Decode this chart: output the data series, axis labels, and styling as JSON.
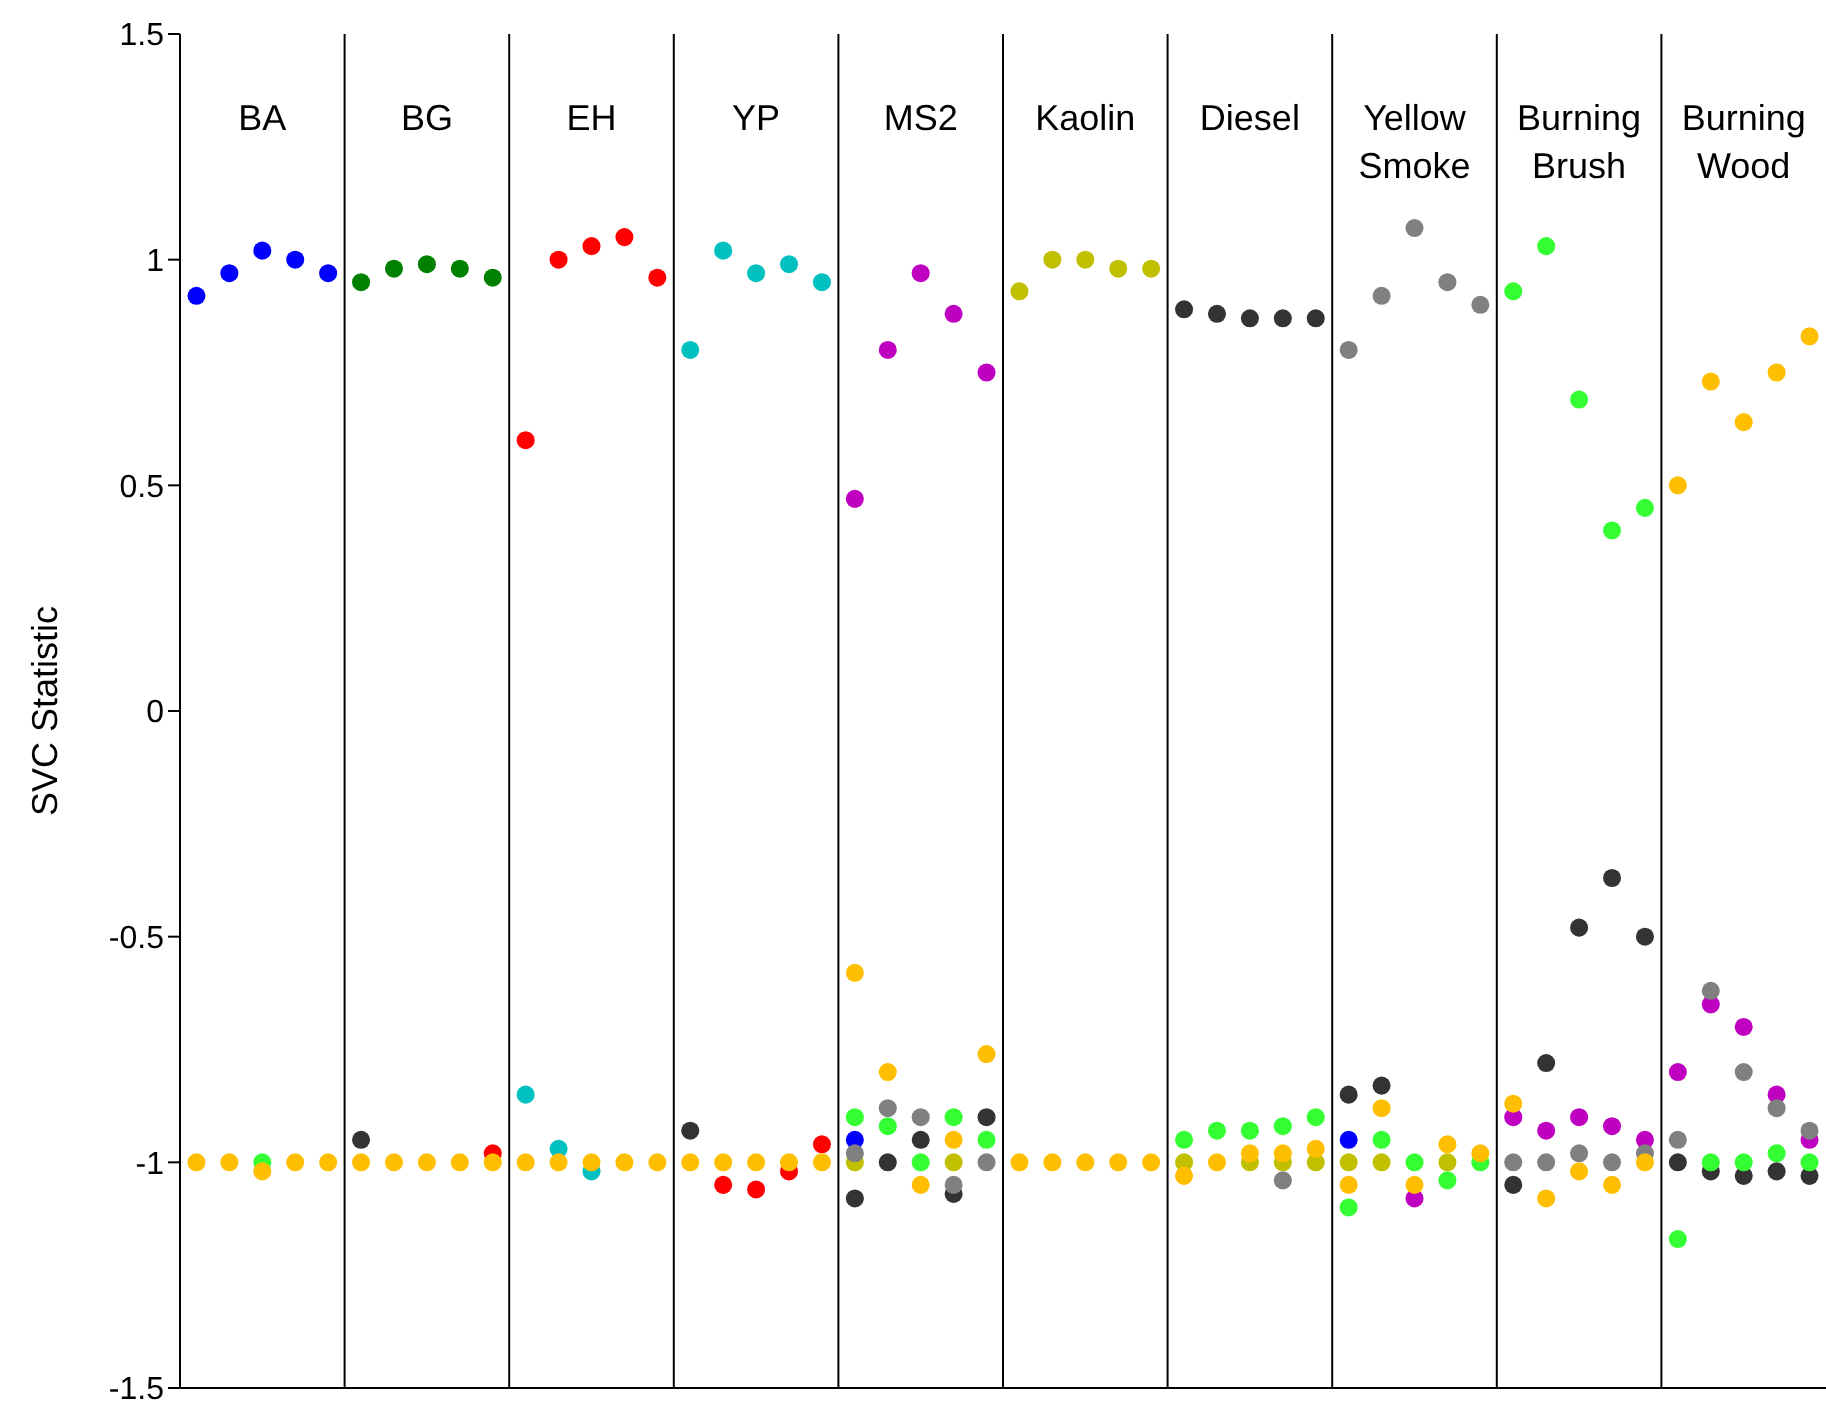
{
  "chart_data": {
    "type": "scatter",
    "ylabel": "SVC Statistic",
    "ylim": [
      -1.5,
      1.5
    ],
    "yticks": [
      -1.5,
      -1,
      -0.5,
      0,
      0.5,
      1,
      1.5
    ],
    "tick_labels": "y",
    "legend": false,
    "marker": "circle",
    "categories": [
      null,
      null,
      null,
      null,
      null,
      null,
      null,
      null,
      null,
      null,
      null,
      null,
      null,
      null,
      null,
      null,
      null,
      null,
      null,
      null,
      null,
      null,
      null,
      null,
      null,
      null,
      null,
      null,
      null,
      null,
      null,
      null,
      null,
      null,
      null,
      null,
      null,
      null,
      null,
      null,
      null,
      null,
      null,
      null,
      null,
      null,
      null,
      null,
      null,
      null
    ],
    "annotations": [
      "BA",
      "BG",
      "EH",
      "YP",
      "MS2",
      "Kaolin",
      "Diesel",
      "Yellow Smoke",
      "Burning Brush",
      "Burning Wood"
    ],
    "series": [
      {
        "color": "#0000ff",
        "values": [
          0.92,
          0.97,
          1.02,
          1.0,
          0.97,
          null,
          null,
          null,
          null,
          null,
          null,
          null,
          null,
          null,
          null,
          null,
          null,
          null,
          null,
          null,
          -0.95,
          null,
          null,
          null,
          null,
          null,
          null,
          null,
          null,
          null,
          null,
          null,
          null,
          null,
          null,
          -0.95,
          null,
          null,
          null,
          null,
          null,
          null,
          null,
          null,
          null,
          null,
          null,
          null,
          null,
          null
        ]
      },
      {
        "color": "#008000",
        "values": [
          null,
          null,
          null,
          null,
          null,
          0.95,
          0.98,
          0.99,
          0.98,
          0.96,
          null,
          null,
          null,
          null,
          null,
          null,
          null,
          null,
          null,
          null,
          null,
          null,
          null,
          null,
          null,
          null,
          null,
          null,
          null,
          null,
          null,
          null,
          null,
          null,
          null,
          null,
          null,
          null,
          null,
          null,
          null,
          null,
          null,
          null,
          null,
          null,
          null,
          null,
          null,
          null
        ]
      },
      {
        "color": "#ff0000",
        "values": [
          null,
          null,
          null,
          null,
          null,
          null,
          null,
          null,
          null,
          -0.98,
          0.6,
          1.0,
          1.03,
          1.05,
          0.96,
          null,
          -1.05,
          -1.06,
          -1.02,
          -0.96,
          null,
          null,
          null,
          null,
          null,
          null,
          null,
          null,
          null,
          null,
          null,
          null,
          null,
          null,
          null,
          null,
          null,
          null,
          null,
          null,
          null,
          null,
          null,
          null,
          null,
          null,
          null,
          null,
          null,
          null
        ]
      },
      {
        "color": "#00c0c0",
        "values": [
          null,
          null,
          null,
          null,
          null,
          null,
          null,
          null,
          null,
          null,
          -0.85,
          -0.97,
          -1.02,
          null,
          null,
          0.8,
          1.02,
          0.97,
          0.99,
          0.95,
          null,
          null,
          null,
          null,
          null,
          null,
          null,
          null,
          null,
          null,
          null,
          null,
          null,
          null,
          null,
          null,
          null,
          null,
          null,
          null,
          null,
          null,
          null,
          null,
          null,
          null,
          null,
          null,
          null,
          null
        ]
      },
      {
        "color": "#c000c0",
        "values": [
          null,
          null,
          null,
          null,
          null,
          null,
          null,
          null,
          null,
          null,
          null,
          null,
          null,
          null,
          null,
          null,
          null,
          null,
          null,
          null,
          0.47,
          0.8,
          0.97,
          0.88,
          0.75,
          null,
          null,
          null,
          null,
          null,
          null,
          null,
          null,
          null,
          null,
          null,
          null,
          -1.08,
          null,
          null,
          -0.9,
          -0.93,
          -0.9,
          -0.92,
          -0.95,
          -0.8,
          -0.65,
          -0.7,
          -0.85,
          -0.95
        ]
      },
      {
        "color": "#c0c000",
        "values": [
          null,
          null,
          null,
          null,
          null,
          null,
          null,
          null,
          null,
          null,
          null,
          null,
          null,
          null,
          null,
          null,
          null,
          null,
          null,
          null,
          -1.0,
          null,
          null,
          -1.0,
          null,
          0.93,
          1.0,
          1.0,
          0.98,
          0.98,
          -1.0,
          null,
          -1.0,
          -1.0,
          -1.0,
          -1.0,
          -1.0,
          null,
          -1.0,
          null,
          null,
          null,
          null,
          null,
          null,
          null,
          null,
          null,
          null,
          null
        ]
      },
      {
        "color": "#333333",
        "values": [
          null,
          null,
          null,
          null,
          null,
          -0.95,
          null,
          null,
          null,
          null,
          null,
          null,
          null,
          null,
          null,
          -0.93,
          null,
          null,
          null,
          null,
          -1.08,
          -1.0,
          -0.95,
          -1.07,
          -0.9,
          null,
          null,
          null,
          null,
          null,
          0.89,
          0.88,
          0.87,
          0.87,
          0.87,
          -0.85,
          -0.83,
          null,
          null,
          null,
          -1.05,
          -0.78,
          -0.48,
          -0.37,
          -0.5,
          -1.0,
          -1.02,
          -1.03,
          -1.02,
          -1.03
        ]
      },
      {
        "color": "#808080",
        "values": [
          null,
          null,
          null,
          null,
          null,
          null,
          null,
          null,
          null,
          null,
          null,
          null,
          null,
          null,
          null,
          null,
          null,
          null,
          null,
          null,
          -0.98,
          -0.88,
          -0.9,
          -1.05,
          -1.0,
          null,
          null,
          null,
          null,
          null,
          null,
          null,
          null,
          -1.04,
          null,
          0.8,
          0.92,
          1.07,
          0.95,
          0.9,
          -1.0,
          -1.0,
          -0.98,
          -1.0,
          -0.98,
          -0.95,
          -0.62,
          -0.8,
          -0.88,
          -0.93
        ]
      },
      {
        "color": "#33ff33",
        "values": [
          null,
          null,
          -1.0,
          null,
          null,
          null,
          null,
          null,
          null,
          null,
          null,
          null,
          null,
          null,
          null,
          null,
          null,
          null,
          null,
          null,
          -0.9,
          -0.92,
          -1.0,
          -0.9,
          -0.95,
          null,
          null,
          null,
          null,
          null,
          -0.95,
          -0.93,
          -0.93,
          -0.92,
          -0.9,
          -1.1,
          -0.95,
          -1.0,
          -1.04,
          -1.0,
          0.93,
          1.03,
          0.69,
          0.4,
          0.45,
          -1.17,
          -1.0,
          -1.0,
          -0.98,
          -1.0
        ]
      },
      {
        "color": "#ffbf00",
        "values": [
          -1.0,
          -1.0,
          -1.02,
          -1.0,
          -1.0,
          -1.0,
          -1.0,
          -1.0,
          -1.0,
          -1.0,
          -1.0,
          -1.0,
          -1.0,
          -1.0,
          -1.0,
          -1.0,
          -1.0,
          -1.0,
          -1.0,
          -1.0,
          -0.58,
          -0.8,
          -1.05,
          -0.95,
          -0.76,
          -1.0,
          -1.0,
          -1.0,
          -1.0,
          -1.0,
          -1.03,
          -1.0,
          -0.98,
          -0.98,
          -0.97,
          -1.05,
          -0.88,
          -1.05,
          -0.96,
          -0.98,
          -0.87,
          -1.08,
          -1.02,
          -1.05,
          -1.0,
          0.5,
          0.73,
          0.64,
          0.75,
          0.83
        ]
      }
    ]
  }
}
